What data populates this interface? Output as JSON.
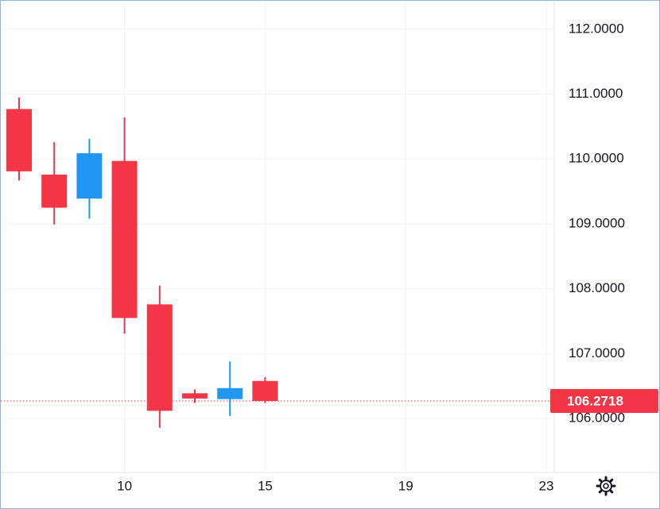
{
  "chart_data": {
    "type": "candlestick",
    "categories": [
      null,
      null,
      null,
      "10",
      null,
      null,
      null,
      "15",
      null,
      null,
      null,
      "19",
      null,
      null,
      null,
      "23"
    ],
    "open": [
      110.77,
      109.76,
      109.39,
      109.97,
      107.76,
      106.39,
      106.3,
      106.58,
      null,
      null,
      null,
      null,
      null,
      null,
      null,
      null
    ],
    "high": [
      110.95,
      110.26,
      110.31,
      110.64,
      108.05,
      106.45,
      106.88,
      106.64,
      null,
      null,
      null,
      null,
      null,
      null,
      null,
      null
    ],
    "low": [
      109.67,
      108.99,
      109.08,
      107.31,
      105.86,
      106.24,
      106.04,
      106.24,
      null,
      null,
      null,
      null,
      null,
      null,
      null,
      null
    ],
    "close": [
      109.81,
      109.25,
      110.09,
      107.55,
      106.12,
      106.31,
      106.47,
      106.2718,
      null,
      null,
      null,
      null,
      null,
      null,
      null,
      null
    ],
    "up_color": "#2196f3",
    "down_color": "#f23645",
    "last_price": 106.2718,
    "ylim": [
      105.17,
      112.45
    ],
    "yticks": [
      {
        "value": 106,
        "label": "106.0000"
      },
      {
        "value": 107,
        "label": "107.0000"
      },
      {
        "value": 108,
        "label": "108.0000"
      },
      {
        "value": 109,
        "label": "109.0000"
      },
      {
        "value": 110,
        "label": "110.0000"
      },
      {
        "value": 111,
        "label": "111.0000"
      },
      {
        "value": 112,
        "label": "112.0000"
      }
    ],
    "grid": true
  }
}
